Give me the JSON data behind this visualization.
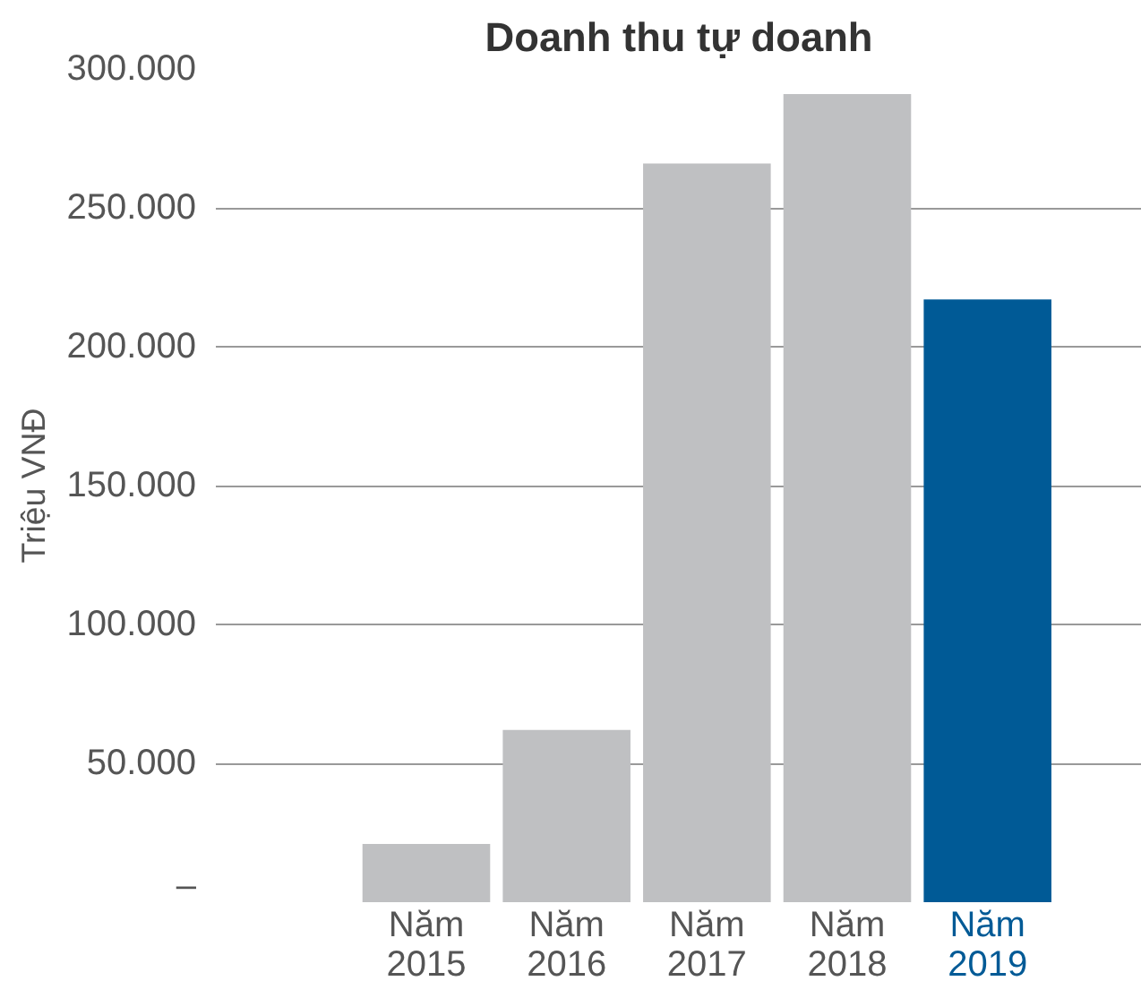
{
  "chart_data": {
    "type": "bar",
    "title": "Doanh thu tự doanh",
    "ylabel": "Triệu VNĐ",
    "categories": [
      "Năm 2015",
      "Năm 2016",
      "Năm 2017",
      "Năm 2018",
      "Năm 2019"
    ],
    "values": [
      21000,
      62000,
      266000,
      291000,
      217000
    ],
    "colors": [
      "#bfc0c2",
      "#bfc0c2",
      "#bfc0c2",
      "#bfc0c2",
      "#005a96"
    ],
    "ylim": [
      0,
      300000
    ],
    "yticks": [
      {
        "value": 0,
        "label": "–"
      },
      {
        "value": 50000,
        "label": "50.000"
      },
      {
        "value": 100000,
        "label": "100.000"
      },
      {
        "value": 150000,
        "label": "150.000"
      },
      {
        "value": 200000,
        "label": "200.000"
      },
      {
        "value": 250000,
        "label": "250.000"
      },
      {
        "value": 300000,
        "label": "300.000"
      }
    ],
    "grid": "y"
  }
}
